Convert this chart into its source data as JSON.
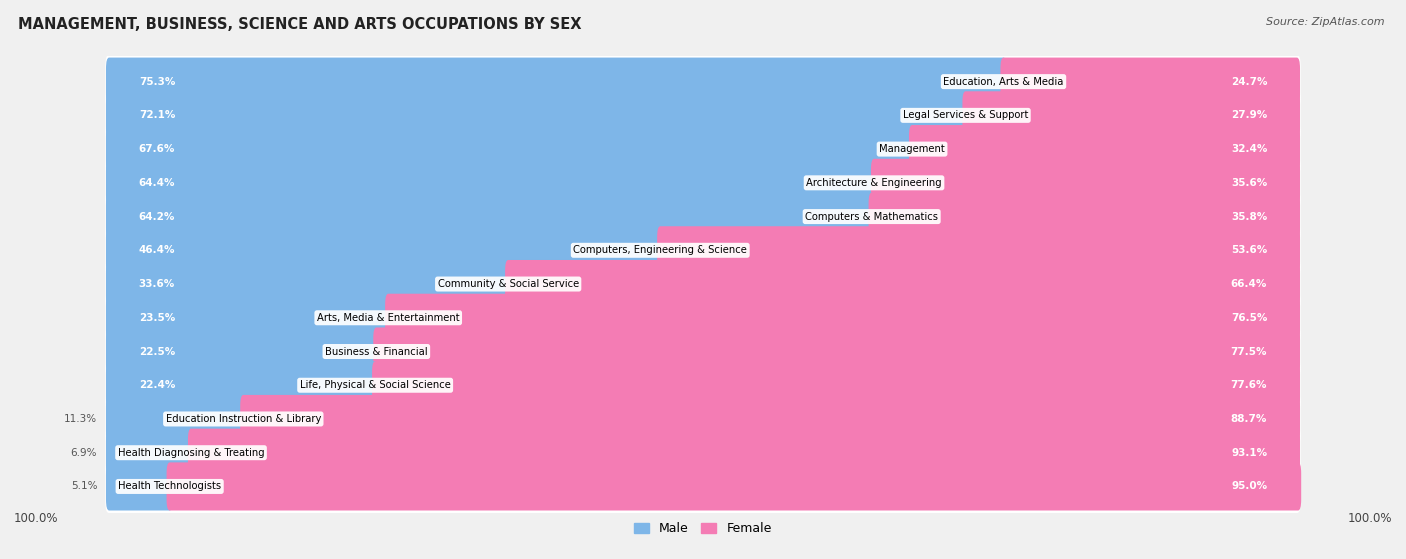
{
  "title": "MANAGEMENT, BUSINESS, SCIENCE AND ARTS OCCUPATIONS BY SEX",
  "source": "Source: ZipAtlas.com",
  "categories": [
    "Education, Arts & Media",
    "Legal Services & Support",
    "Management",
    "Architecture & Engineering",
    "Computers & Mathematics",
    "Computers, Engineering & Science",
    "Community & Social Service",
    "Arts, Media & Entertainment",
    "Business & Financial",
    "Life, Physical & Social Science",
    "Education Instruction & Library",
    "Health Diagnosing & Treating",
    "Health Technologists"
  ],
  "male_pct": [
    75.3,
    72.1,
    67.6,
    64.4,
    64.2,
    46.4,
    33.6,
    23.5,
    22.5,
    22.4,
    11.3,
    6.9,
    5.1
  ],
  "female_pct": [
    24.7,
    27.9,
    32.4,
    35.6,
    35.8,
    53.6,
    66.4,
    76.5,
    77.5,
    77.6,
    88.7,
    93.1,
    95.0
  ],
  "male_color": "#7EB6E8",
  "female_color": "#F47CB4",
  "background_color": "#f0f0f0",
  "row_bg_color": "#ffffff",
  "label_color_dark": "#555555",
  "legend_male": "Male",
  "legend_female": "Female"
}
